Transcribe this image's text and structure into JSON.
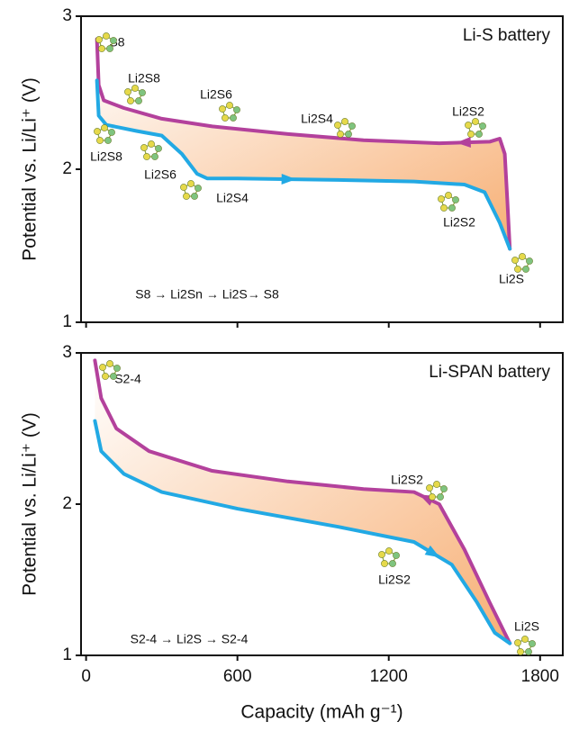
{
  "chart_data": [
    {
      "type": "line",
      "title": "Li-S battery",
      "xlim": [
        -20,
        1890
      ],
      "xticks": [
        0,
        600,
        1200,
        1800
      ],
      "ylim": [
        1,
        3
      ],
      "yticks": [
        1,
        2,
        3
      ],
      "ylabel": "Potential vs. Li/Li⁺ (V)",
      "series": [
        {
          "color": "#b3419c",
          "x": [
            43,
            50,
            70,
            150,
            300,
            500,
            800,
            1100,
            1400,
            1600,
            1640,
            1660,
            1670,
            1680
          ],
          "values": [
            2.85,
            2.55,
            2.45,
            2.4,
            2.33,
            2.28,
            2.23,
            2.19,
            2.17,
            2.18,
            2.2,
            2.1,
            1.8,
            1.48
          ]
        },
        {
          "color": "#22a9e4",
          "x": [
            43,
            50,
            80,
            200,
            300,
            380,
            440,
            480,
            600,
            1000,
            1300,
            1500,
            1580,
            1640,
            1680
          ],
          "values": [
            2.58,
            2.35,
            2.29,
            2.25,
            2.22,
            2.1,
            1.97,
            1.94,
            1.94,
            1.93,
            1.92,
            1.9,
            1.85,
            1.65,
            1.48
          ]
        }
      ],
      "annotations": [
        "S8",
        "Li2S8",
        "Li2S6",
        "Li2S4",
        "Li2S2",
        "Li2S8",
        "Li2S6",
        "Li2S4",
        "Li2S2",
        "Li2S",
        "S8 → Li2Sn → Li2S→ S8"
      ]
    },
    {
      "type": "line",
      "title": "Li-SPAN battery",
      "xlim": [
        -20,
        1890
      ],
      "xticks": [
        0,
        600,
        1200,
        1800
      ],
      "ylim": [
        1,
        3
      ],
      "yticks": [
        1,
        2,
        3
      ],
      "xlabel": "Capacity (mAh g⁻¹)",
      "ylabel": "Potential vs. Li/Li⁺ (V)",
      "series": [
        {
          "color": "#b3419c",
          "x": [
            35,
            60,
            120,
            250,
            500,
            800,
            1100,
            1300,
            1400,
            1500,
            1600,
            1680
          ],
          "values": [
            2.95,
            2.7,
            2.5,
            2.35,
            2.22,
            2.15,
            2.1,
            2.08,
            2.0,
            1.7,
            1.35,
            1.08
          ]
        },
        {
          "color": "#22a9e4",
          "x": [
            35,
            60,
            150,
            300,
            600,
            1000,
            1300,
            1450,
            1550,
            1620,
            1680
          ],
          "values": [
            2.55,
            2.35,
            2.2,
            2.08,
            1.97,
            1.85,
            1.75,
            1.6,
            1.35,
            1.15,
            1.08
          ]
        }
      ],
      "annotations": [
        "S2-4",
        "Li2S2",
        "Li2S2",
        "Li2S",
        "S2-4 → Li2S → S2-4"
      ]
    }
  ]
}
